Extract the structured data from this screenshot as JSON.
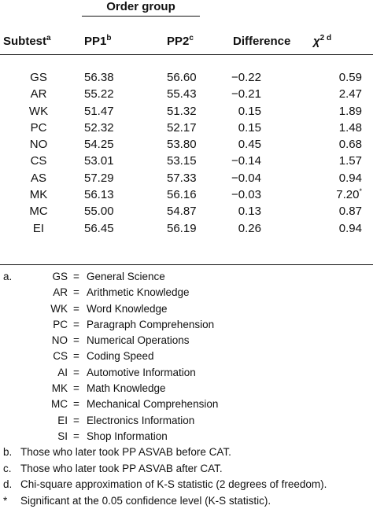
{
  "table": {
    "group_header": "Order group",
    "columns": {
      "subtest": "Subtest",
      "subtest_sup": "a",
      "pp1": "PP1",
      "pp1_sup": "b",
      "pp2": "PP2",
      "pp2_sup": "c",
      "difference": "Difference",
      "chi": "χ",
      "chi_sup": "2 d"
    },
    "rows": [
      {
        "subtest": "GS",
        "pp1": "56.38",
        "pp2": "56.60",
        "diff": "−0.22",
        "chi": "0.59",
        "chi_mark": ""
      },
      {
        "subtest": "AR",
        "pp1": "55.22",
        "pp2": "55.43",
        "diff": "−0.21",
        "chi": "2.47",
        "chi_mark": ""
      },
      {
        "subtest": "WK",
        "pp1": "51.47",
        "pp2": "51.32",
        "diff": "0.15",
        "chi": "1.89",
        "chi_mark": ""
      },
      {
        "subtest": "PC",
        "pp1": "52.32",
        "pp2": "52.17",
        "diff": "0.15",
        "chi": "1.48",
        "chi_mark": ""
      },
      {
        "subtest": "NO",
        "pp1": "54.25",
        "pp2": "53.80",
        "diff": "0.45",
        "chi": "0.68",
        "chi_mark": ""
      },
      {
        "subtest": "CS",
        "pp1": "53.01",
        "pp2": "53.15",
        "diff": "−0.14",
        "chi": "1.57",
        "chi_mark": ""
      },
      {
        "subtest": "AS",
        "pp1": "57.29",
        "pp2": "57.33",
        "diff": "−0.04",
        "chi": "0.94",
        "chi_mark": ""
      },
      {
        "subtest": "MK",
        "pp1": "56.13",
        "pp2": "56.16",
        "diff": "−0.03",
        "chi": "7.20",
        "chi_mark": "*"
      },
      {
        "subtest": "MC",
        "pp1": "55.00",
        "pp2": "54.87",
        "diff": "0.13",
        "chi": "0.87",
        "chi_mark": ""
      },
      {
        "subtest": "EI",
        "pp1": "56.45",
        "pp2": "56.19",
        "diff": "0.26",
        "chi": "0.94",
        "chi_mark": ""
      }
    ]
  },
  "notes": {
    "a_marker": "a.",
    "abbreviations": [
      {
        "abbr": "GS",
        "eq": "=",
        "name": "General Science"
      },
      {
        "abbr": "AR",
        "eq": "=",
        "name": "Arithmetic Knowledge"
      },
      {
        "abbr": "WK",
        "eq": "=",
        "name": "Word Knowledge"
      },
      {
        "abbr": "PC",
        "eq": "=",
        "name": "Paragraph Comprehension"
      },
      {
        "abbr": "NO",
        "eq": "=",
        "name": "Numerical Operations"
      },
      {
        "abbr": "CS",
        "eq": "=",
        "name": "Coding Speed"
      },
      {
        "abbr": "AI",
        "eq": "=",
        "name": "Automotive Information"
      },
      {
        "abbr": "MK",
        "eq": "=",
        "name": "Math Knowledge"
      },
      {
        "abbr": "MC",
        "eq": "=",
        "name": "Mechanical Comprehension"
      },
      {
        "abbr": "EI",
        "eq": "=",
        "name": "Electronics Information"
      },
      {
        "abbr": "SI",
        "eq": "=",
        "name": "Shop Information"
      }
    ],
    "footnotes": [
      {
        "marker": "b.",
        "text": "Those who later took PP ASVAB before CAT."
      },
      {
        "marker": "c.",
        "text": "Those who later took PP ASVAB after CAT."
      },
      {
        "marker": "d.",
        "text": "Chi-square approximation of K-S statistic (2 degrees of freedom)."
      },
      {
        "marker": "*",
        "text": "Significant at the 0.05 confidence level (K-S statistic)."
      }
    ]
  }
}
